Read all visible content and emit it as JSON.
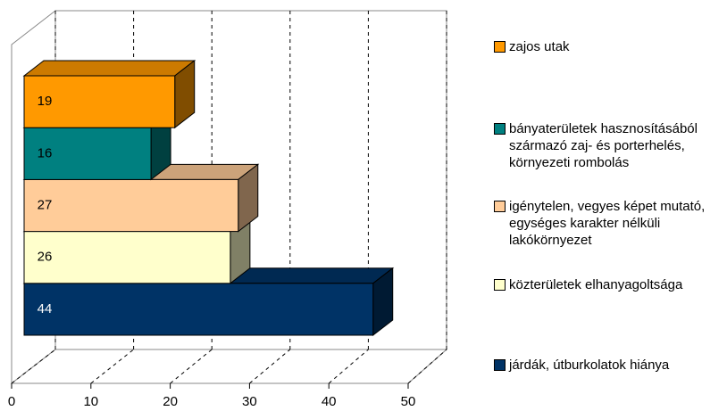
{
  "chart_data": {
    "type": "bar3d_horizontal",
    "categories": [
      "járdák, útburkolatok hiánya",
      "közterületek elhanyagoltsága",
      "igénytelen, vegyes képet mutató, egységes karakter nélküli lakókörnyezet",
      "bányaterületek hasznosításából származó zaj- és porterhelés, környezeti rombolás",
      "zajos utak"
    ],
    "values": [
      44,
      26,
      27,
      16,
      19
    ],
    "colors": [
      "#003366",
      "#ffffcc",
      "#ffcc99",
      "#008080",
      "#ff9900"
    ],
    "xlim": [
      0,
      50
    ],
    "xticks": [
      0,
      10,
      20,
      30,
      40,
      50
    ],
    "grid": true
  }
}
